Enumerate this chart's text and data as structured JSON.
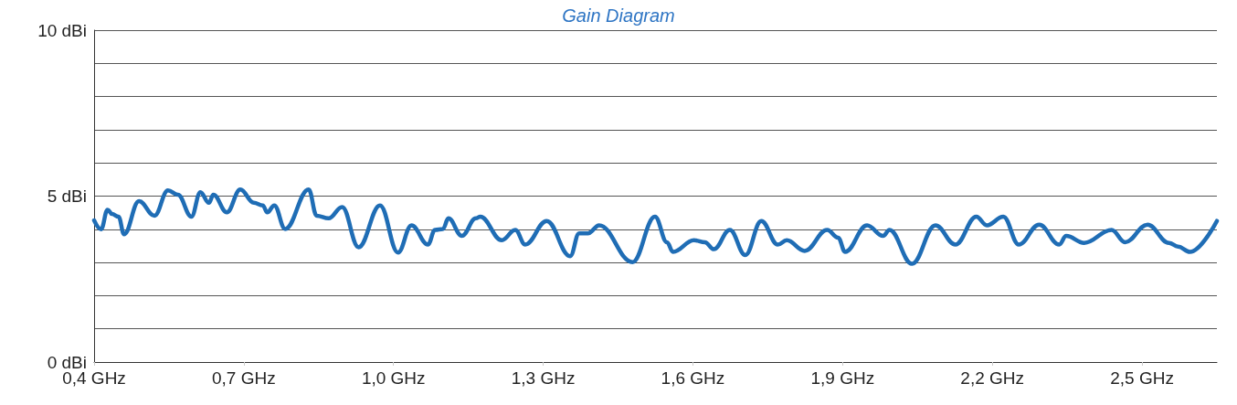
{
  "chart_data": {
    "type": "line",
    "title": "Gain Diagram",
    "xlim": [
      0.4,
      2.65
    ],
    "xticks": [
      {
        "value": 0.4,
        "label": "0,4 GHz"
      },
      {
        "value": 0.7,
        "label": "0,7 GHz"
      },
      {
        "value": 1.0,
        "label": "1,0 GHz"
      },
      {
        "value": 1.3,
        "label": "1,3 GHz"
      },
      {
        "value": 1.6,
        "label": "1,6 GHz"
      },
      {
        "value": 1.9,
        "label": "1,9 GHz"
      },
      {
        "value": 2.2,
        "label": "2,2 GHz"
      },
      {
        "value": 2.5,
        "label": "2,5 GHz"
      }
    ],
    "ylim": [
      0,
      10
    ],
    "yticks": [
      {
        "value": 0,
        "label": "0 dBi"
      },
      {
        "value": 1,
        "label": null
      },
      {
        "value": 2,
        "label": null
      },
      {
        "value": 3,
        "label": null
      },
      {
        "value": 4,
        "label": null
      },
      {
        "value": 5,
        "label": "5 dBi"
      },
      {
        "value": 6,
        "label": null
      },
      {
        "value": 7,
        "label": null
      },
      {
        "value": 8,
        "label": null
      },
      {
        "value": 9,
        "label": null
      },
      {
        "value": 10,
        "label": "10 dBi"
      }
    ],
    "grid": "y",
    "marker": "none",
    "line_style": "solid",
    "x": [
      0.4,
      0.414,
      0.427,
      0.436,
      0.449,
      0.46,
      0.49,
      0.521,
      0.548,
      0.568,
      0.595,
      0.613,
      0.63,
      0.639,
      0.666,
      0.693,
      0.72,
      0.738,
      0.747,
      0.761,
      0.783,
      0.83,
      0.846,
      0.87,
      0.897,
      0.93,
      0.973,
      1.009,
      1.036,
      1.069,
      1.083,
      1.099,
      1.11,
      1.137,
      1.165,
      1.174,
      1.217,
      1.244,
      1.264,
      1.307,
      1.354,
      1.372,
      1.39,
      1.412,
      1.479,
      1.524,
      1.548,
      1.56,
      1.602,
      1.624,
      1.642,
      1.674,
      1.705,
      1.737,
      1.77,
      1.788,
      1.824,
      1.869,
      1.891,
      1.905,
      1.949,
      1.981,
      1.994,
      2.039,
      2.086,
      2.126,
      2.168,
      2.189,
      2.222,
      2.253,
      2.294,
      2.334,
      2.348,
      2.384,
      2.439,
      2.466,
      2.511,
      2.554,
      2.572,
      2.596,
      2.65
    ],
    "series": [
      {
        "color": "#1f6db5",
        "values": [
          4.27,
          4.0,
          4.59,
          4.46,
          4.38,
          3.85,
          4.85,
          4.41,
          5.17,
          5.04,
          4.38,
          5.12,
          4.8,
          5.04,
          4.51,
          5.2,
          4.8,
          4.72,
          4.51,
          4.72,
          4.01,
          5.2,
          4.41,
          4.33,
          4.67,
          3.46,
          4.72,
          3.3,
          4.12,
          3.54,
          3.98,
          4.01,
          4.33,
          3.8,
          4.33,
          4.38,
          3.67,
          3.98,
          3.54,
          4.25,
          3.19,
          3.88,
          3.88,
          4.12,
          3.01,
          4.38,
          3.61,
          3.32,
          3.67,
          3.61,
          3.4,
          3.98,
          3.22,
          4.25,
          3.54,
          3.67,
          3.35,
          3.98,
          3.75,
          3.32,
          4.12,
          3.8,
          3.98,
          2.96,
          4.12,
          3.54,
          4.38,
          4.12,
          4.38,
          3.54,
          4.14,
          3.54,
          3.8,
          3.59,
          3.98,
          3.61,
          4.14,
          3.59,
          3.48,
          3.32,
          4.25
        ]
      }
    ]
  }
}
